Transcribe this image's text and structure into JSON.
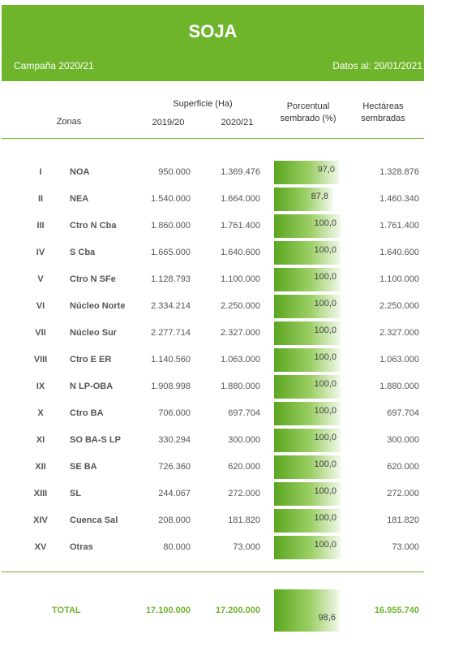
{
  "header": {
    "title": "SOJA",
    "campaign": "Campaña 2020/21",
    "date": "Datos al: 20/01/2021"
  },
  "columns": {
    "zonas": "Zonas",
    "superficie": "Superficie (Ha)",
    "year_a": "2019/20",
    "year_b": "2020/21",
    "porcentual_1": "Porcentual",
    "porcentual_2": "sembrado (%)",
    "hectareas_1": "Hectáreas",
    "hectareas_2": "sembradas"
  },
  "rows": [
    {
      "num": "I",
      "zone": "NOA",
      "a": "950.000",
      "b": "1.369.476",
      "pct": "97,0",
      "pct_value": 97.0,
      "ha": "1.328.876"
    },
    {
      "num": "II",
      "zone": "NEA",
      "a": "1.540.000",
      "b": "1.664.000",
      "pct": "87,8",
      "pct_value": 87.8,
      "ha": "1.460.340"
    },
    {
      "num": "III",
      "zone": "Ctro N Cba",
      "a": "1.860.000",
      "b": "1.761.400",
      "pct": "100,0",
      "pct_value": 100.0,
      "ha": "1.761.400"
    },
    {
      "num": "IV",
      "zone": "S Cba",
      "a": "1.665.000",
      "b": "1.640.600",
      "pct": "100,0",
      "pct_value": 100.0,
      "ha": "1.640.600"
    },
    {
      "num": "V",
      "zone": "Ctro N SFe",
      "a": "1.128.793",
      "b": "1.100.000",
      "pct": "100,0",
      "pct_value": 100.0,
      "ha": "1.100.000"
    },
    {
      "num": "VI",
      "zone": "Núcleo Norte",
      "a": "2.334.214",
      "b": "2.250.000",
      "pct": "100,0",
      "pct_value": 100.0,
      "ha": "2.250.000"
    },
    {
      "num": "VII",
      "zone": "Núcleo Sur",
      "a": "2.277.714",
      "b": "2.327.000",
      "pct": "100,0",
      "pct_value": 100.0,
      "ha": "2.327.000"
    },
    {
      "num": "VIII",
      "zone": "Ctro E ER",
      "a": "1.140.560",
      "b": "1.063.000",
      "pct": "100,0",
      "pct_value": 100.0,
      "ha": "1.063.000"
    },
    {
      "num": "IX",
      "zone": "N LP-OBA",
      "a": "1.908.998",
      "b": "1.880.000",
      "pct": "100,0",
      "pct_value": 100.0,
      "ha": "1.880.000"
    },
    {
      "num": "X",
      "zone": "Ctro BA",
      "a": "706.000",
      "b": "697.704",
      "pct": "100,0",
      "pct_value": 100.0,
      "ha": "697.704"
    },
    {
      "num": "XI",
      "zone": "SO BA-S LP",
      "a": "330.294",
      "b": "300.000",
      "pct": "100,0",
      "pct_value": 100.0,
      "ha": "300.000"
    },
    {
      "num": "XII",
      "zone": "SE BA",
      "a": "726.360",
      "b": "620.000",
      "pct": "100,0",
      "pct_value": 100.0,
      "ha": "620.000"
    },
    {
      "num": "XIII",
      "zone": "SL",
      "a": "244.067",
      "b": "272.000",
      "pct": "100,0",
      "pct_value": 100.0,
      "ha": "272.000"
    },
    {
      "num": "XIV",
      "zone": "Cuenca Sal",
      "a": "208.000",
      "b": "181.820",
      "pct": "100,0",
      "pct_value": 100.0,
      "ha": "181.820"
    },
    {
      "num": "XV",
      "zone": "Otras",
      "a": "80.000",
      "b": "73.000",
      "pct": "100,0",
      "pct_value": 100.0,
      "ha": "73.000"
    }
  ],
  "total": {
    "label": "TOTAL",
    "a": "17.100.000",
    "b": "17.200.000",
    "pct": "98,6",
    "pct_value": 98.6,
    "ha": "16.955.740"
  },
  "colors": {
    "accent": "#6fb52c",
    "bar_start": "#5aa61f",
    "bar_end": "#f2f8ea"
  }
}
